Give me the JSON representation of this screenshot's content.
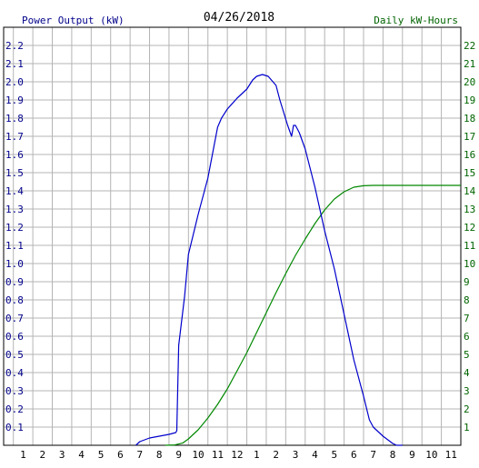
{
  "chart_data": {
    "type": "line",
    "title": "04/26/2018",
    "left_axis_label": "Power Output (kW)",
    "right_axis_label": "Daily kW-Hours",
    "x_tick_labels": [
      "1",
      "2",
      "3",
      "4",
      "5",
      "6",
      "7",
      "8",
      "9",
      "10",
      "11",
      "12",
      "1",
      "2",
      "3",
      "4",
      "5",
      "6",
      "7",
      "8",
      "9",
      "10",
      "11"
    ],
    "x_range_hours": [
      0,
      23.5
    ],
    "y_left_range": [
      0,
      2.3
    ],
    "y_left_ticks": [
      "0.1",
      "0.2",
      "0.3",
      "0.4",
      "0.5",
      "0.6",
      "0.7",
      "0.8",
      "0.9",
      "1.0",
      "1.1",
      "1.2",
      "1.3",
      "1.4",
      "1.5",
      "1.6",
      "1.7",
      "1.8",
      "1.9",
      "2.0",
      "2.1",
      "2.2"
    ],
    "y_right_range": [
      0,
      23
    ],
    "y_right_ticks": [
      "1",
      "2",
      "3",
      "4",
      "5",
      "6",
      "7",
      "8",
      "9",
      "10",
      "11",
      "12",
      "13",
      "14",
      "15",
      "16",
      "17",
      "18",
      "19",
      "20",
      "21",
      "22"
    ],
    "grid": true,
    "series": [
      {
        "name": "Power Output (kW)",
        "axis": "left",
        "color": "#0000cc",
        "x": [
          6.8,
          7.0,
          7.5,
          8.0,
          8.5,
          8.85,
          8.9,
          9.0,
          9.3,
          9.5,
          10.0,
          10.5,
          11.0,
          11.2,
          11.5,
          12.0,
          12.5,
          12.8,
          13.0,
          13.3,
          13.6,
          14.0,
          14.2,
          14.4,
          14.6,
          14.8,
          14.85,
          14.9,
          15.0,
          15.2,
          15.5,
          16.0,
          16.5,
          17.0,
          17.5,
          18.0,
          18.5,
          18.8,
          19.0,
          19.5,
          20.0,
          20.2,
          20.5
        ],
        "y": [
          0.0,
          0.02,
          0.04,
          0.05,
          0.06,
          0.07,
          0.08,
          0.55,
          0.82,
          1.05,
          1.27,
          1.47,
          1.75,
          1.8,
          1.85,
          1.91,
          1.96,
          2.01,
          2.03,
          2.04,
          2.03,
          1.98,
          1.9,
          1.83,
          1.76,
          1.7,
          1.73,
          1.76,
          1.76,
          1.72,
          1.63,
          1.42,
          1.18,
          0.97,
          0.72,
          0.47,
          0.27,
          0.14,
          0.1,
          0.05,
          0.01,
          0.0,
          0.0
        ]
      },
      {
        "name": "Daily kW-Hours",
        "axis": "right",
        "color": "#008800",
        "x": [
          8.3,
          8.8,
          9.2,
          9.5,
          10.0,
          10.5,
          11.0,
          11.5,
          12.0,
          12.5,
          13.0,
          13.5,
          14.0,
          14.5,
          15.0,
          15.5,
          16.0,
          16.5,
          17.0,
          17.5,
          18.0,
          18.5,
          19.0,
          19.5,
          20.0,
          21.0,
          22.0,
          23.5
        ],
        "y": [
          0.0,
          0.02,
          0.12,
          0.35,
          0.85,
          1.5,
          2.25,
          3.1,
          4.1,
          5.1,
          6.2,
          7.3,
          8.4,
          9.45,
          10.45,
          11.35,
          12.2,
          12.95,
          13.55,
          13.95,
          14.2,
          14.28,
          14.3,
          14.3,
          14.3,
          14.3,
          14.3,
          14.3
        ]
      }
    ]
  }
}
